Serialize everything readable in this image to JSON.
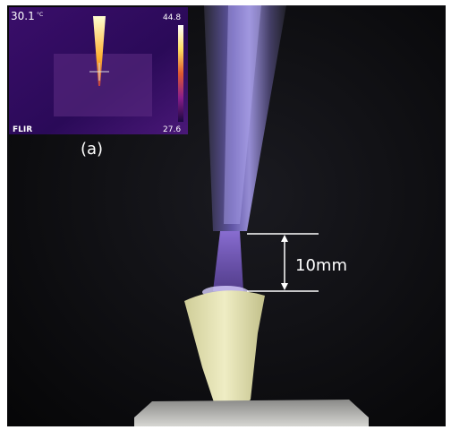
{
  "inset": {
    "temperature": "30.1",
    "unit": "°C",
    "scale_max": "44.8",
    "scale_min": "27.6",
    "brand": "FLIR",
    "label": "(a)"
  },
  "annotation": {
    "distance": "10mm"
  }
}
